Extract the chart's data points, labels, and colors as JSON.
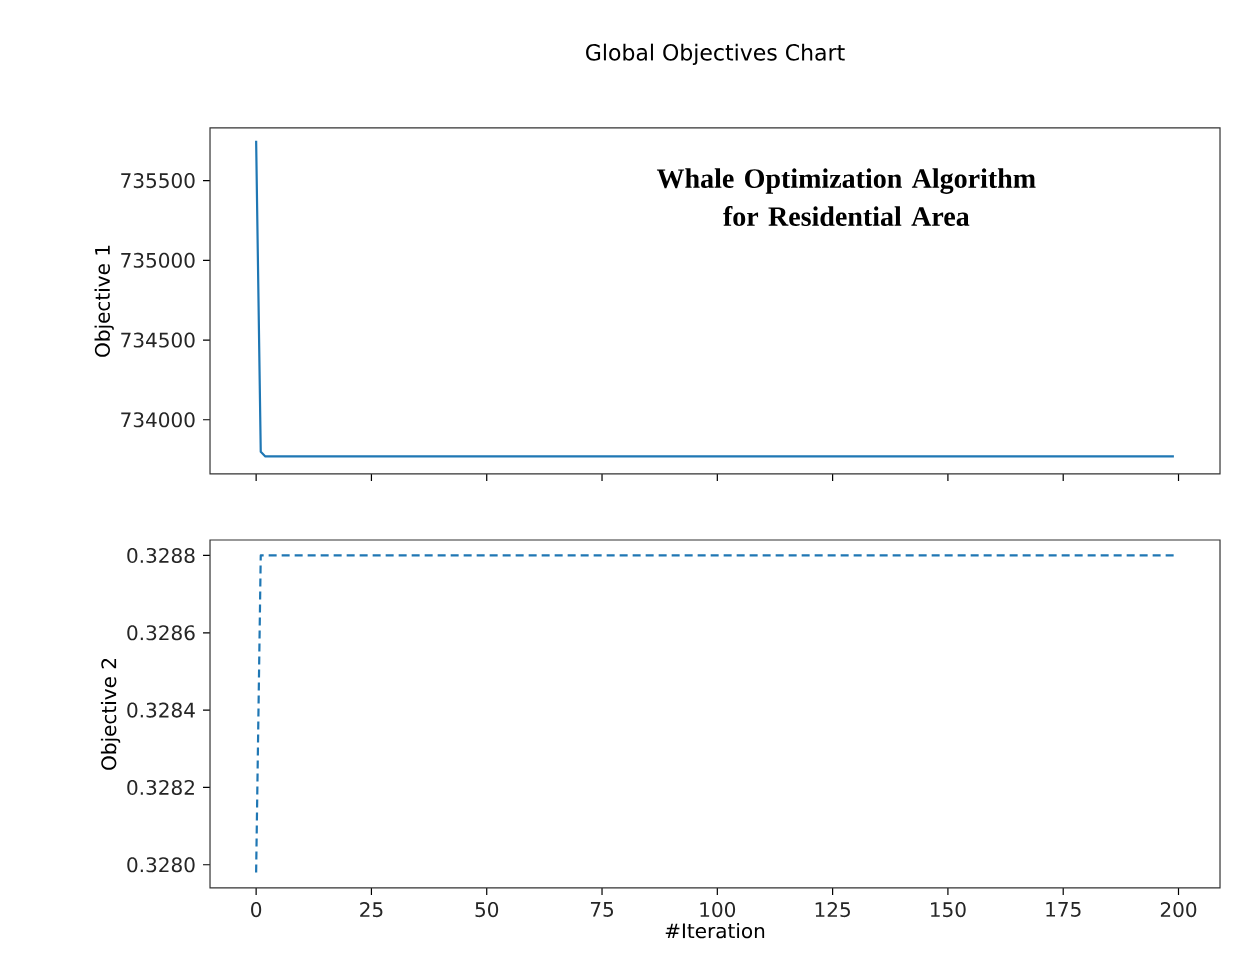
{
  "chart_data": [
    {
      "type": "line",
      "title": "Global Objectives Chart",
      "ylabel": "Objective 1",
      "annotations": [
        "Whale Optimization Algorithm for Residential Area"
      ],
      "x": [
        0,
        1,
        2,
        199
      ],
      "series": [
        {
          "color": "#1f77b4",
          "values": [
            735750,
            733800,
            733770,
            733770
          ]
        }
      ],
      "xlim": [
        -10,
        209
      ],
      "ylim": [
        733660,
        735830
      ],
      "xticks": [
        0,
        25,
        50,
        75,
        100,
        125,
        150,
        175,
        200
      ],
      "yticks": [
        734000,
        734500,
        735000,
        735500
      ],
      "tick_labels": "y",
      "line_style": "solid"
    },
    {
      "type": "line",
      "xlabel": "#Iteration",
      "ylabel": "Objective 2",
      "x": [
        0,
        1,
        199
      ],
      "series": [
        {
          "color": "#1f77b4",
          "values": [
            0.32798,
            0.3288,
            0.3288
          ]
        }
      ],
      "xlim": [
        -10,
        209
      ],
      "ylim": [
        0.32794,
        0.32884
      ],
      "xticks": [
        0,
        25,
        50,
        75,
        100,
        125,
        150,
        175,
        200
      ],
      "yticks": [
        {
          "value": 0.328,
          "label": "0.3280"
        },
        0.3282,
        0.3284,
        0.3286,
        {
          "value": 0.3288,
          "label": "0.3288"
        }
      ],
      "line_style": "dashed"
    }
  ]
}
